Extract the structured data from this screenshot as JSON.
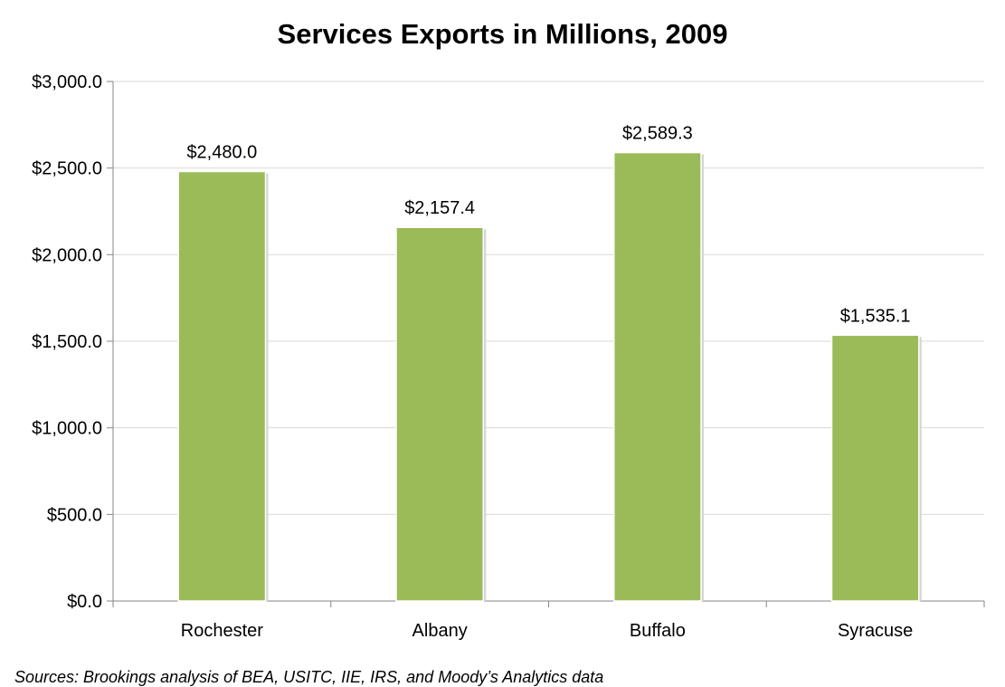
{
  "chart_data": {
    "type": "bar",
    "title": "Services Exports in Millions, 2009",
    "categories": [
      "Rochester",
      "Albany",
      "Buffalo",
      "Syracuse"
    ],
    "values": [
      2480.0,
      2157.4,
      2589.3,
      1535.1
    ],
    "data_labels": [
      "$2,480.0",
      "$2,157.4",
      "$2,589.3",
      "$1,535.1"
    ],
    "ylim": [
      0,
      3000
    ],
    "yticks": [
      0,
      500,
      1000,
      1500,
      2000,
      2500,
      3000
    ],
    "ytick_labels": [
      "$0.0",
      "$500.0",
      "$1,000.0",
      "$1,500.0",
      "$2,000.0",
      "$2,500.0",
      "$3,000.0"
    ],
    "xlabel": "",
    "ylabel": "",
    "grid": true,
    "legend": "none",
    "bar_color": "#9BBB59",
    "gridline_color": "#D9D9D9",
    "axis_color": "#868686"
  },
  "source": "Sources: Brookings analysis of BEA, USITC, IIE, IRS, and Moody’s Analytics data"
}
